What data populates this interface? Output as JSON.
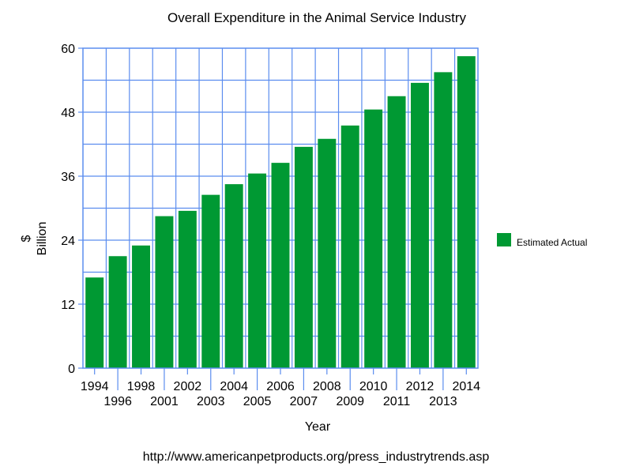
{
  "chart_data": {
    "type": "bar",
    "title": "Overall Expenditure in the Animal Service Industry",
    "xlabel": "Year",
    "ylabel_lines": [
      "$",
      "Billion"
    ],
    "ylim": [
      0,
      60
    ],
    "yticks": [
      0,
      12,
      24,
      36,
      48,
      60
    ],
    "grid": true,
    "categories": [
      "1994",
      "1996",
      "1998",
      "2001",
      "2002",
      "2003",
      "2004",
      "2005",
      "2006",
      "2007",
      "2008",
      "2009",
      "2010",
      "2011",
      "2012",
      "2013",
      "2014"
    ],
    "series": [
      {
        "name": "Estimated Actual",
        "color": "#009933",
        "values": [
          17.0,
          21.0,
          23.0,
          28.5,
          29.5,
          32.5,
          34.5,
          36.5,
          38.5,
          41.5,
          43.0,
          45.5,
          48.5,
          51.0,
          53.5,
          55.5,
          58.5
        ]
      }
    ],
    "legend_position": "right"
  },
  "source_text": "http://www.americanpetproducts.org/press_industrytrends.asp"
}
